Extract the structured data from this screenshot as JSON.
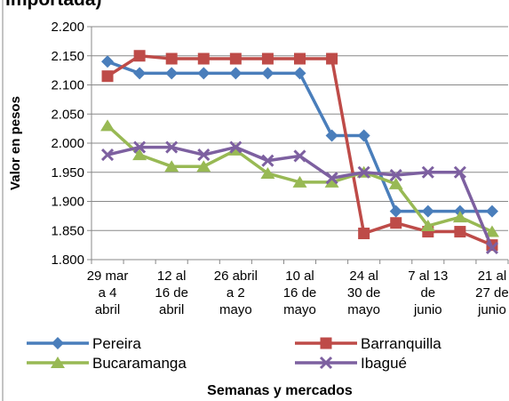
{
  "chart_data": {
    "type": "line",
    "title": "importada)",
    "y_label": "Valor en pesos",
    "x_label": "Semanas y mercados",
    "categories": [
      "29 mar\na 4\nabril",
      null,
      "12 al\n16 de\nabril",
      null,
      "26 abril\na 2\nmayo",
      null,
      "10 al\n16 de\nmayo",
      null,
      "24 al\n30 de\nmayo",
      null,
      "7 al 13\nde\njunio",
      null,
      "21 al\n27 de\njunio"
    ],
    "series": [
      {
        "name": "Pereira",
        "color": "#4a7ebb",
        "marker": "diamond",
        "values": [
          2.14,
          2.12,
          2.12,
          2.12,
          2.12,
          2.12,
          2.12,
          2.013,
          2.013,
          1.883,
          1.883,
          1.883,
          1.883
        ]
      },
      {
        "name": "Barranquilla",
        "color": "#be4b48",
        "marker": "square",
        "values": [
          2.115,
          2.15,
          2.145,
          2.145,
          2.145,
          2.145,
          2.145,
          2.145,
          1.845,
          1.863,
          1.848,
          1.848,
          1.825
        ]
      },
      {
        "name": "Bucaramanga",
        "color": "#98b954",
        "marker": "triangle",
        "values": [
          2.03,
          1.98,
          1.96,
          1.96,
          1.988,
          1.948,
          1.933,
          1.933,
          1.95,
          1.93,
          1.858,
          1.873,
          1.848
        ]
      },
      {
        "name": "Ibagué",
        "color": "#7d60a0",
        "marker": "x",
        "values": [
          1.98,
          1.993,
          1.993,
          1.98,
          1.993,
          1.97,
          1.978,
          1.94,
          1.95,
          1.945,
          1.95,
          1.95,
          1.82
        ]
      }
    ],
    "ylim": [
      1.8,
      2.2
    ],
    "yticks": [
      {
        "value": 1.8,
        "label": "1.800"
      },
      {
        "value": 1.85,
        "label": "1.850"
      },
      {
        "value": 1.9,
        "label": "1.900"
      },
      {
        "value": 1.95,
        "label": "1.950"
      },
      {
        "value": 2.0,
        "label": "2.000"
      },
      {
        "value": 2.05,
        "label": "2.050"
      },
      {
        "value": 2.1,
        "label": "2.100"
      },
      {
        "value": 2.15,
        "label": "2.150"
      },
      {
        "value": 2.2,
        "label": "2.200"
      }
    ],
    "grid": true,
    "legend_position": "bottom"
  }
}
